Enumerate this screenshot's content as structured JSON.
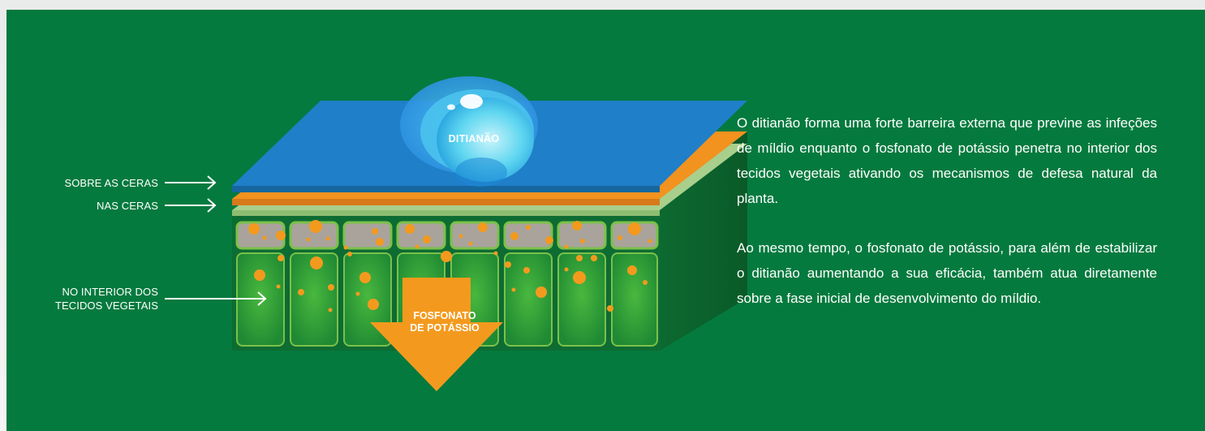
{
  "labels": {
    "sobre_ceras": "SOBRE AS CERAS",
    "nas_ceras": "NAS CERAS",
    "interior_line1": "NO INTERIOR DOS",
    "interior_line2": "TECIDOS VEGETAIS"
  },
  "drop_label": "DITIANÃO",
  "arrow_label_line1": "FOSFONATO",
  "arrow_label_line2": "DE POTÁSSIO",
  "description": {
    "paragraph1": "O ditianão forma uma forte barreira externa que previne as infeções de míldio enquanto o fosfonato de potássio penetra no interior dos tecidos vegetais ativando os mecanismos de defesa natural da planta.",
    "paragraph2": "Ao mesmo tempo, o fosfonato de potássio, para além de estabilizar o ditianão aumentando a sua eficácia, também atua diretamente sobre a fase inicial de desenvolvimento do míldio."
  },
  "colors": {
    "background": "#057a3e",
    "top_layer": "#1f7fc8",
    "wax_layer": "#f2921f",
    "light_layer": "#a8d08a",
    "cell_fill": "#37a73a",
    "particles": "#f39a1e",
    "arrow": "#f39a1e",
    "drop": "#59d4ef"
  }
}
